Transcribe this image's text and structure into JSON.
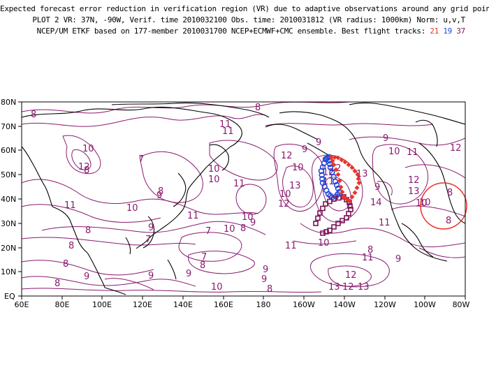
{
  "header": {
    "line1": "Expected forecast error reduction in verification region (VR) due to adaptive observations around any grid point.",
    "line2": "PLOT 2 VR: 37N, -90W, Verif. time 2010032100 Obs. time: 2010031812 (VR radius: 1000km) Norm: u,v,T",
    "line3_prefix": "NCEP/UM ETKF based on 177-member 2010031700 NCEP+ECMWF+CMC ensemble. Best flight tracks:",
    "tracks": [
      {
        "id": "21",
        "color": "#e8352a"
      },
      {
        "id": "19",
        "color": "#2446d8"
      },
      {
        "id": "37",
        "color": "#7a1458"
      }
    ]
  },
  "map": {
    "lat_labels": [
      "80N",
      "70N",
      "60N",
      "50N",
      "40N",
      "30N",
      "20N",
      "10N",
      "EQ"
    ],
    "lon_labels": [
      "60E",
      "80E",
      "100E",
      "120E",
      "140E",
      "160E",
      "180",
      "160W",
      "140W",
      "120W",
      "100W",
      "80W"
    ],
    "contour_color": "#8a1a6e",
    "verification_region_color": "#e8352a",
    "contour_labels": [
      "8",
      "11",
      "9",
      "10",
      "12",
      "7",
      "8",
      "11",
      "10",
      "10",
      "11",
      "9",
      "9",
      "10",
      "11",
      "12",
      "10",
      "11",
      "10",
      "10",
      "12",
      "13",
      "11",
      "12",
      "13",
      "14",
      "12",
      "12",
      "13",
      "10",
      "10",
      "9",
      "8",
      "11",
      "12",
      "8",
      "9",
      "10",
      "9",
      "9",
      "7",
      "8",
      "8",
      "9",
      "7",
      "8",
      "7",
      "8",
      "9",
      "10",
      "11",
      "8",
      "9",
      "8",
      "9",
      "11",
      "8",
      "13",
      "12",
      "13",
      "12",
      "10",
      "9",
      "11",
      "8",
      "9",
      "10",
      "8",
      "8"
    ]
  }
}
